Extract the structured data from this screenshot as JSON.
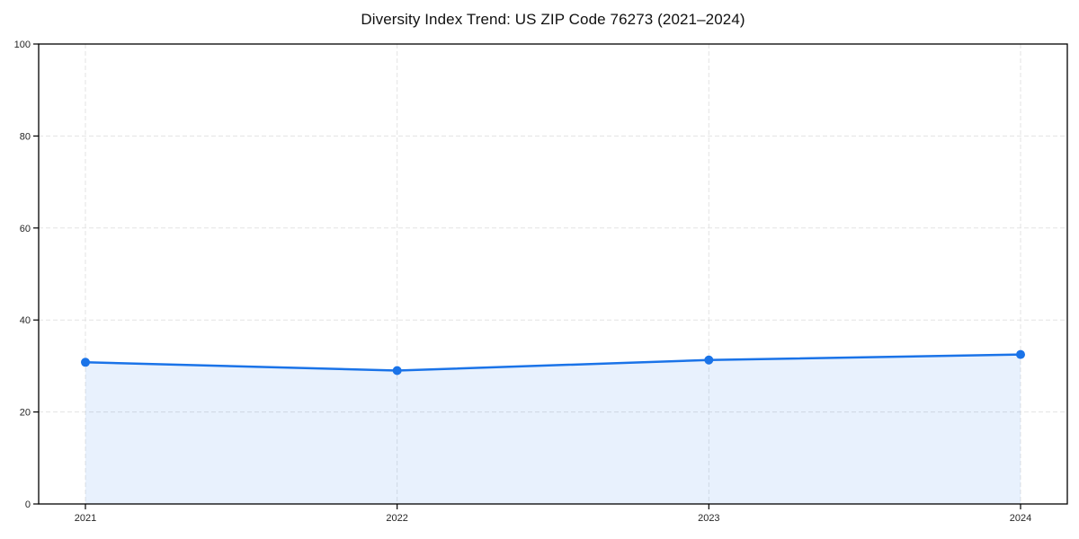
{
  "chart_data": {
    "type": "area",
    "title": "Diversity Index Trend: US ZIP Code 76273 (2021–2024)",
    "series": [
      {
        "name": "Diversity Index",
        "values": [
          30.8,
          29.0,
          31.3,
          32.5
        ]
      }
    ],
    "categories": [
      "2021",
      "2022",
      "2023",
      "2024"
    ],
    "x": [
      2021,
      2022,
      2023,
      2024
    ],
    "xlabel": "",
    "ylabel": "",
    "ylim": [
      0,
      100
    ],
    "yticks": [
      0,
      20,
      40,
      60,
      80,
      100
    ],
    "grid": true,
    "grid_style": "dashed",
    "legend": false,
    "marker": "circle",
    "colors": {
      "line": "#1a73e8",
      "marker": "#1a73e8",
      "fill": "#1a73e8",
      "fill_opacity": 0.1,
      "grid": "#e3e3e3",
      "axis": "#000000",
      "tick_label": "#262626",
      "title": "#111111",
      "background": "#ffffff"
    }
  }
}
